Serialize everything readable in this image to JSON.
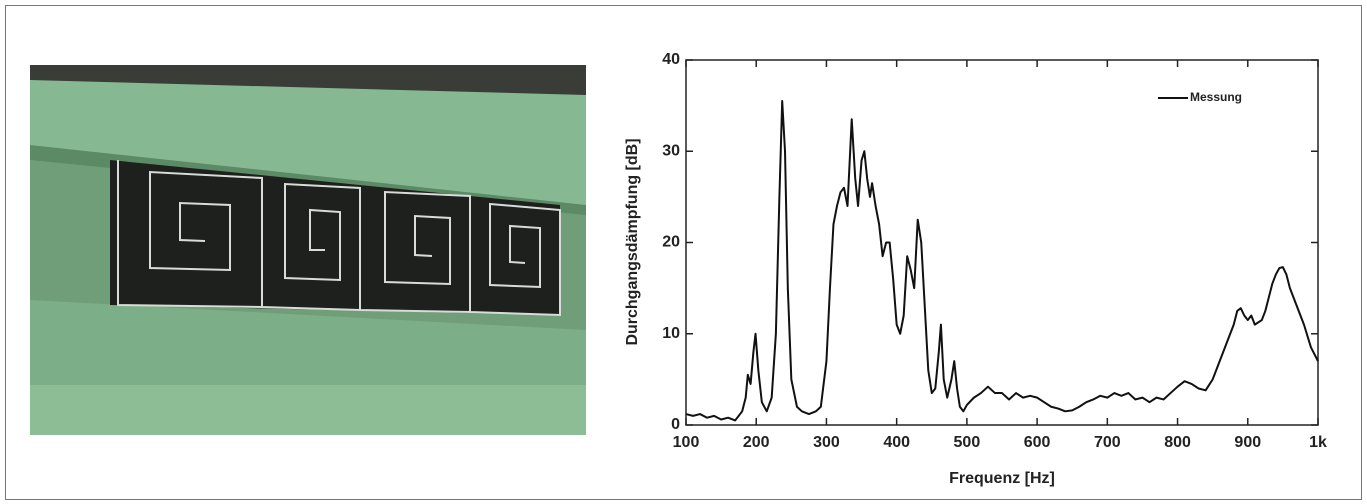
{
  "chart_data": {
    "type": "line",
    "x_label": "Frequenz [Hz]",
    "y_label": "Durchgangsdämpfung [dB]",
    "xlim": [
      100,
      1000
    ],
    "ylim": [
      0,
      40
    ],
    "xticks": [
      100,
      200,
      300,
      400,
      500,
      600,
      700,
      800,
      900,
      {
        "value": 1000,
        "label": "1k"
      }
    ],
    "yticks": [
      0,
      10,
      20,
      30,
      40
    ],
    "grid": false,
    "legend": "upper right",
    "x": [
      100,
      110,
      120,
      130,
      140,
      150,
      160,
      170,
      180,
      185,
      188,
      192,
      196,
      199,
      203,
      208,
      215,
      222,
      228,
      233,
      237,
      241,
      245,
      250,
      258,
      265,
      275,
      285,
      292,
      300,
      305,
      310,
      315,
      320,
      325,
      330,
      336,
      341,
      345,
      350,
      354,
      358,
      362,
      365,
      370,
      375,
      380,
      385,
      390,
      395,
      400,
      405,
      410,
      415,
      420,
      425,
      430,
      435,
      440,
      445,
      450,
      455,
      460,
      463,
      467,
      472,
      478,
      482,
      486,
      490,
      495,
      500,
      510,
      520,
      530,
      540,
      550,
      560,
      570,
      580,
      590,
      600,
      610,
      620,
      630,
      640,
      650,
      660,
      670,
      680,
      690,
      700,
      710,
      720,
      730,
      740,
      750,
      760,
      770,
      780,
      790,
      800,
      810,
      820,
      830,
      840,
      850,
      860,
      870,
      880,
      885,
      890,
      895,
      900,
      905,
      910,
      920,
      925,
      930,
      935,
      940,
      945,
      950,
      955,
      960,
      970,
      980,
      990,
      1000
    ],
    "series": [
      {
        "name": "Messung",
        "color": "#111111",
        "values": [
          1.2,
          1.0,
          1.2,
          0.8,
          1.0,
          0.6,
          0.8,
          0.5,
          1.5,
          3,
          5.5,
          4.5,
          8,
          10,
          6,
          2.5,
          1.5,
          3,
          10,
          25,
          35.5,
          30,
          15,
          5,
          2,
          1.5,
          1.2,
          1.5,
          2,
          7,
          15,
          22,
          24,
          25.5,
          26,
          24,
          33.5,
          27,
          24,
          29,
          30,
          27,
          25,
          26.5,
          24,
          22,
          18.5,
          20,
          20,
          16,
          11,
          10,
          12,
          18.5,
          17,
          15,
          22.5,
          20,
          13,
          6,
          3.5,
          4,
          8,
          11,
          5,
          3,
          5,
          7,
          4,
          2,
          1.5,
          2.2,
          3,
          3.5,
          4.2,
          3.5,
          3.5,
          2.8,
          3.5,
          3,
          3.2,
          3,
          2.5,
          2,
          1.8,
          1.5,
          1.6,
          2,
          2.5,
          2.8,
          3.2,
          3,
          3.5,
          3.2,
          3.5,
          2.8,
          3,
          2.5,
          3,
          2.8,
          3.5,
          4.2,
          4.8,
          4.5,
          4,
          3.8,
          5,
          7,
          9,
          11,
          12.5,
          12.8,
          12,
          11.5,
          12,
          11,
          11.5,
          12.5,
          14,
          15.5,
          16.5,
          17.2,
          17.3,
          16.5,
          15,
          13,
          11,
          8.5,
          7
        ]
      }
    ]
  }
}
